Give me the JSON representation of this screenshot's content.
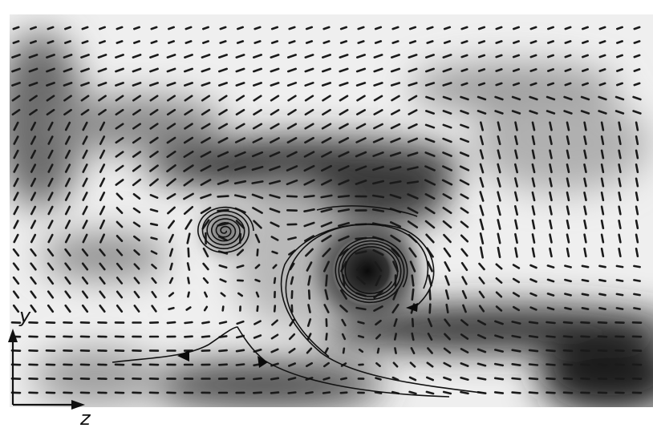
{
  "figure": {
    "axes": {
      "vertical": "y",
      "horizontal": "z"
    },
    "colors": {
      "background": "#ffffff",
      "field_light": "#f2f2f2",
      "field_dark": "#1a1a1a",
      "ink": "#111111"
    }
  }
}
